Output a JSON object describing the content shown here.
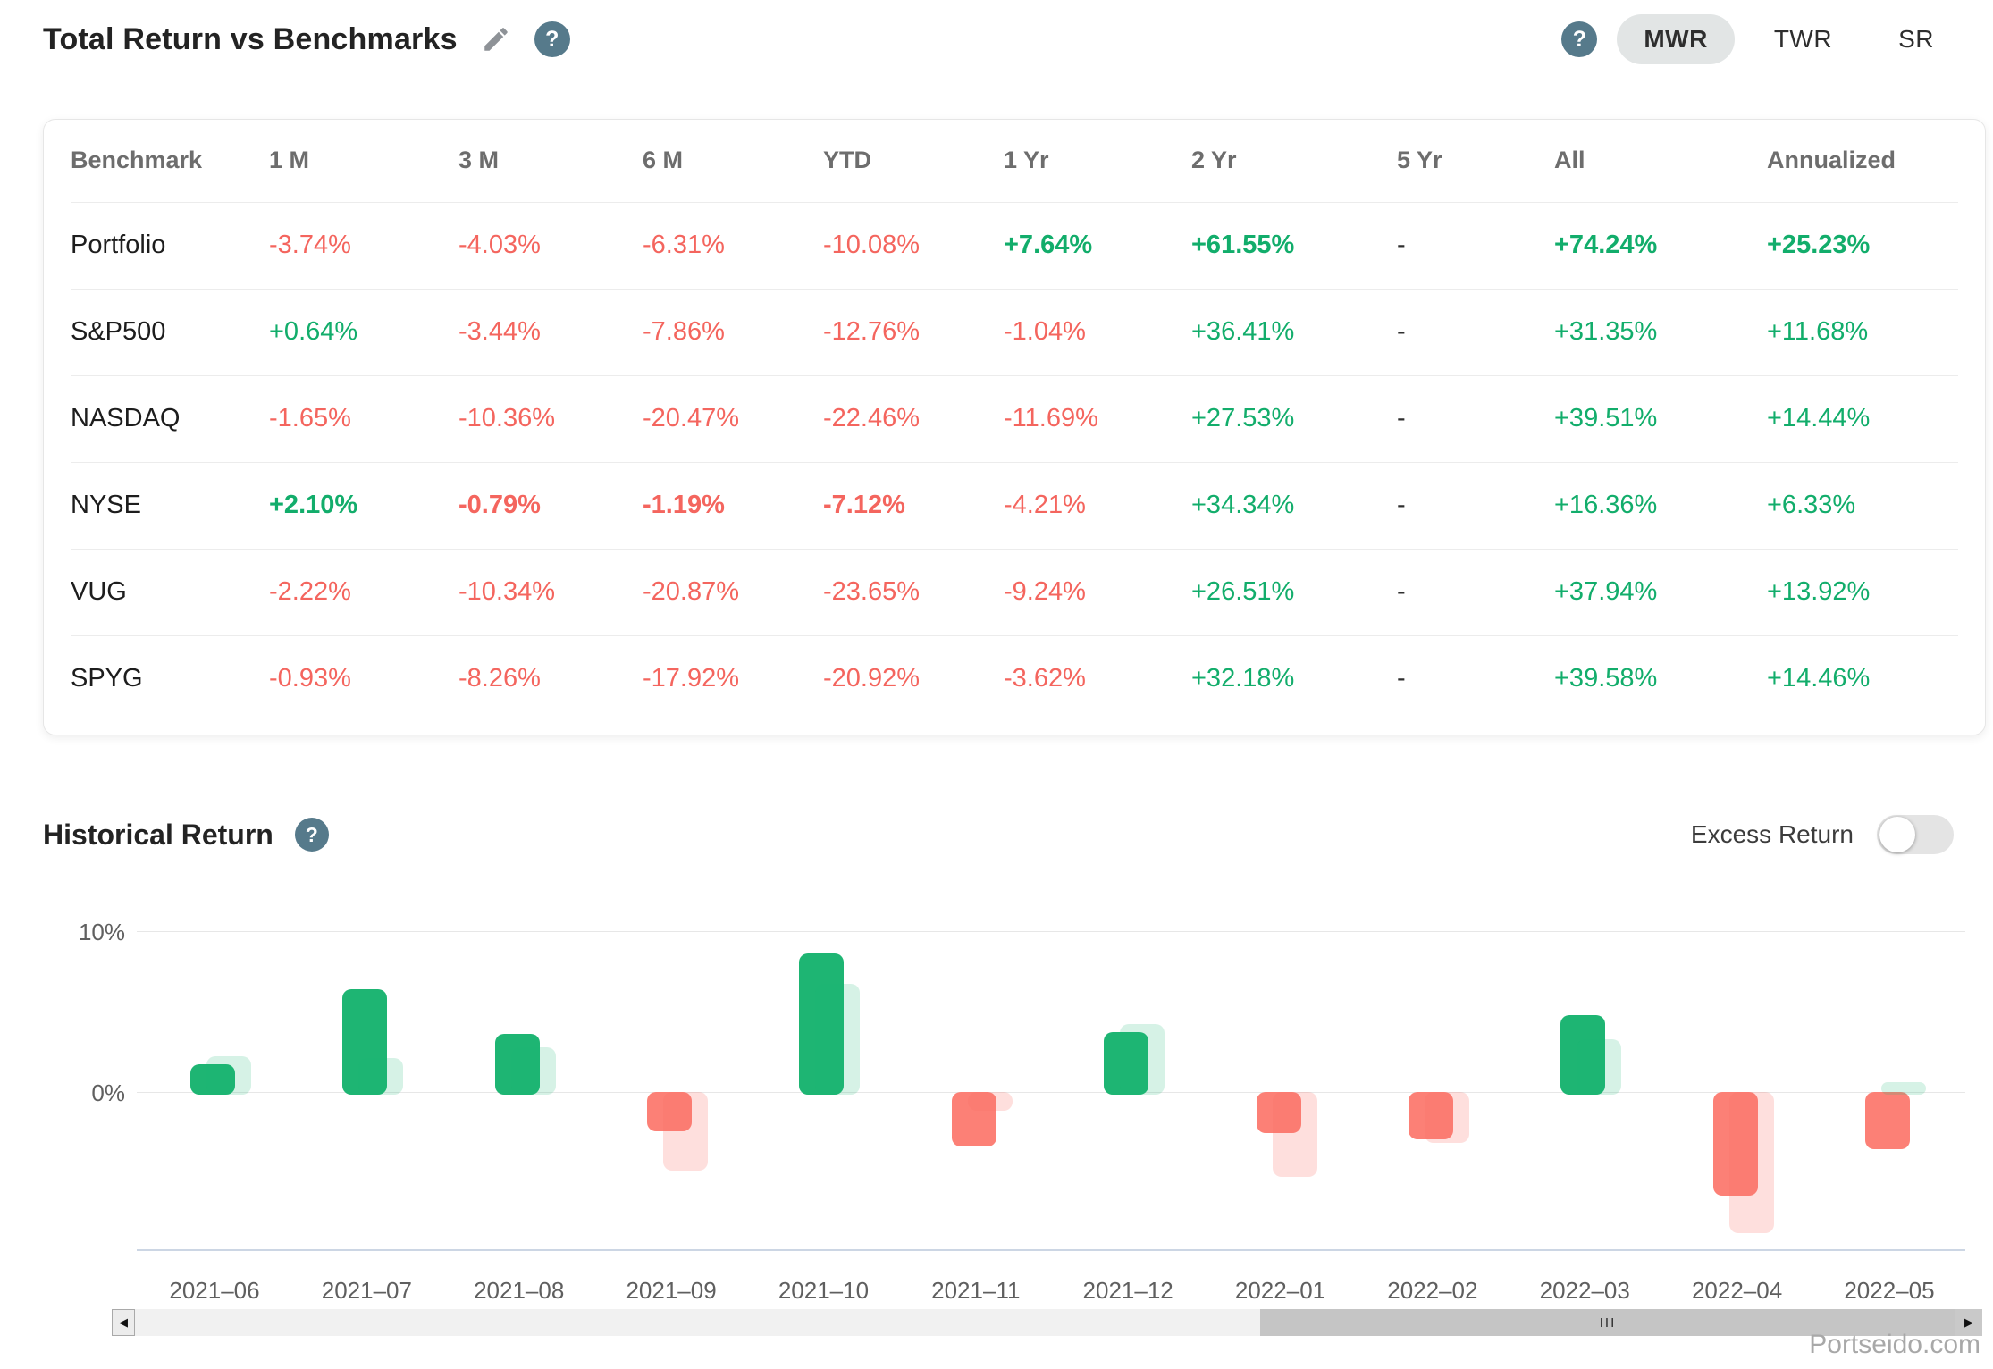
{
  "header": {
    "title": "Total Return vs Benchmarks",
    "mode_selected": "MWR",
    "modes": [
      "MWR",
      "TWR",
      "SR"
    ]
  },
  "icons": {
    "help": "?",
    "scroll_left": "◀",
    "scroll_right": "▶",
    "grip": "III"
  },
  "colors": {
    "positive": "#12ad6b",
    "negative": "#f4655e",
    "help_icon": "#567a8b"
  },
  "benchmark_table": {
    "columns": [
      "Benchmark",
      "1 M",
      "3 M",
      "6 M",
      "YTD",
      "1 Yr",
      "2 Yr",
      "5 Yr",
      "All",
      "Annualized"
    ],
    "rows": [
      {
        "name": "Portfolio",
        "cells": [
          {
            "t": "-3.74%",
            "s": "neg"
          },
          {
            "t": "-4.03%",
            "s": "neg"
          },
          {
            "t": "-6.31%",
            "s": "neg"
          },
          {
            "t": "-10.08%",
            "s": "neg"
          },
          {
            "t": "+7.64%",
            "s": "pos",
            "b": true
          },
          {
            "t": "+61.55%",
            "s": "pos",
            "b": true
          },
          {
            "t": "-",
            "s": "dash"
          },
          {
            "t": "+74.24%",
            "s": "pos",
            "b": true
          },
          {
            "t": "+25.23%",
            "s": "pos",
            "b": true
          }
        ]
      },
      {
        "name": "S&P500",
        "cells": [
          {
            "t": "+0.64%",
            "s": "pos"
          },
          {
            "t": "-3.44%",
            "s": "neg"
          },
          {
            "t": "-7.86%",
            "s": "neg"
          },
          {
            "t": "-12.76%",
            "s": "neg"
          },
          {
            "t": "-1.04%",
            "s": "neg"
          },
          {
            "t": "+36.41%",
            "s": "pos"
          },
          {
            "t": "-",
            "s": "dash"
          },
          {
            "t": "+31.35%",
            "s": "pos"
          },
          {
            "t": "+11.68%",
            "s": "pos"
          }
        ]
      },
      {
        "name": "NASDAQ",
        "cells": [
          {
            "t": "-1.65%",
            "s": "neg"
          },
          {
            "t": "-10.36%",
            "s": "neg"
          },
          {
            "t": "-20.47%",
            "s": "neg"
          },
          {
            "t": "-22.46%",
            "s": "neg"
          },
          {
            "t": "-11.69%",
            "s": "neg"
          },
          {
            "t": "+27.53%",
            "s": "pos"
          },
          {
            "t": "-",
            "s": "dash"
          },
          {
            "t": "+39.51%",
            "s": "pos"
          },
          {
            "t": "+14.44%",
            "s": "pos"
          }
        ]
      },
      {
        "name": "NYSE",
        "cells": [
          {
            "t": "+2.10%",
            "s": "pos",
            "b": true
          },
          {
            "t": "-0.79%",
            "s": "neg",
            "b": true
          },
          {
            "t": "-1.19%",
            "s": "neg",
            "b": true
          },
          {
            "t": "-7.12%",
            "s": "neg",
            "b": true
          },
          {
            "t": "-4.21%",
            "s": "neg"
          },
          {
            "t": "+34.34%",
            "s": "pos"
          },
          {
            "t": "-",
            "s": "dash"
          },
          {
            "t": "+16.36%",
            "s": "pos"
          },
          {
            "t": "+6.33%",
            "s": "pos"
          }
        ]
      },
      {
        "name": "VUG",
        "cells": [
          {
            "t": "-2.22%",
            "s": "neg"
          },
          {
            "t": "-10.34%",
            "s": "neg"
          },
          {
            "t": "-20.87%",
            "s": "neg"
          },
          {
            "t": "-23.65%",
            "s": "neg"
          },
          {
            "t": "-9.24%",
            "s": "neg"
          },
          {
            "t": "+26.51%",
            "s": "pos"
          },
          {
            "t": "-",
            "s": "dash"
          },
          {
            "t": "+37.94%",
            "s": "pos"
          },
          {
            "t": "+13.92%",
            "s": "pos"
          }
        ]
      },
      {
        "name": "SPYG",
        "cells": [
          {
            "t": "-0.93%",
            "s": "neg"
          },
          {
            "t": "-8.26%",
            "s": "neg"
          },
          {
            "t": "-17.92%",
            "s": "neg"
          },
          {
            "t": "-20.92%",
            "s": "neg"
          },
          {
            "t": "-3.62%",
            "s": "neg"
          },
          {
            "t": "+32.18%",
            "s": "pos"
          },
          {
            "t": "-",
            "s": "dash"
          },
          {
            "t": "+39.58%",
            "s": "pos"
          },
          {
            "t": "+14.46%",
            "s": "pos"
          }
        ]
      }
    ]
  },
  "historical": {
    "title": "Historical Return",
    "toggle_label": "Excess Return",
    "toggle_on": false
  },
  "chart_data": {
    "type": "bar",
    "title": "Historical Return",
    "categories": [
      "2021–06",
      "2021–07",
      "2021–08",
      "2021–09",
      "2021–10",
      "2021–11",
      "2021–12",
      "2022–01",
      "2022–02",
      "2022–03",
      "2022–04",
      "2022–05"
    ],
    "series": [
      {
        "name": "Portfolio",
        "values": [
          1.7,
          6.4,
          3.6,
          -2.3,
          8.6,
          -3.2,
          3.7,
          -2.4,
          -2.8,
          4.8,
          -6.3,
          -3.4
        ]
      },
      {
        "name": "Benchmark",
        "values": [
          2.2,
          2.1,
          2.8,
          -4.7,
          6.7,
          -1.0,
          4.2,
          -5.1,
          -3.0,
          3.3,
          -8.6,
          0.6
        ]
      }
    ],
    "ylabel_ticks": [
      "10%",
      "0%"
    ],
    "ylim": [
      -10,
      11
    ],
    "grid": "horizontal",
    "legend": "none",
    "colors": {
      "portfolio_pos": "#1eb573",
      "portfolio_neg": "#fc8076",
      "benchmark_pos": "rgba(30,181,115,0.18)",
      "benchmark_neg": "rgba(250,110,100,0.22)"
    }
  },
  "watermark": "Portseido.com"
}
